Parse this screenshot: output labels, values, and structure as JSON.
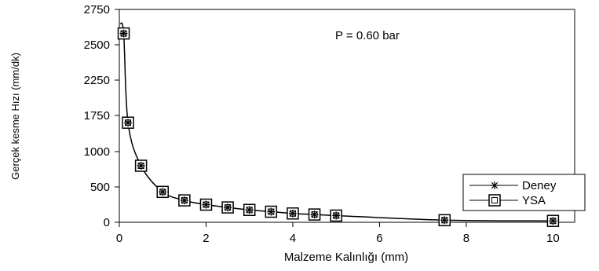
{
  "chart_data": {
    "type": "line",
    "title": "",
    "annotation": "P = 0.60 bar",
    "xlabel": "Malzeme Kalınlığı (mm)",
    "ylabel": "Gerçek kesme Hızı (mm/dk)",
    "xlim": [
      0,
      10.5
    ],
    "ylim": [
      0,
      2750
    ],
    "x_ticks": [
      0,
      2,
      4,
      6,
      8,
      10
    ],
    "y_ticks": [
      0,
      500,
      1000,
      1750,
      2250,
      2500,
      2750
    ],
    "y_tick_labels": [
      "0",
      "500",
      "1000",
      "1750",
      "2250",
      "2500",
      "2750"
    ],
    "legend_position": "lower-right",
    "series": [
      {
        "name": "Deney",
        "marker": "asterisk",
        "x": [
          0.1,
          0.2,
          0.5,
          1.0,
          1.5,
          2.0,
          2.5,
          3.0,
          3.5,
          4.0,
          4.5,
          5.0,
          7.5,
          10.0
        ],
        "y": [
          2580,
          1600,
          800,
          430,
          310,
          250,
          210,
          175,
          150,
          125,
          110,
          95,
          30,
          20
        ]
      },
      {
        "name": "YSA",
        "marker": "square",
        "x": [
          0.1,
          0.2,
          0.5,
          1.0,
          1.5,
          2.0,
          2.5,
          3.0,
          3.5,
          4.0,
          4.5,
          5.0,
          7.5,
          10.0
        ],
        "y": [
          2580,
          1600,
          800,
          430,
          310,
          250,
          210,
          175,
          150,
          125,
          110,
          95,
          30,
          20
        ]
      }
    ]
  }
}
